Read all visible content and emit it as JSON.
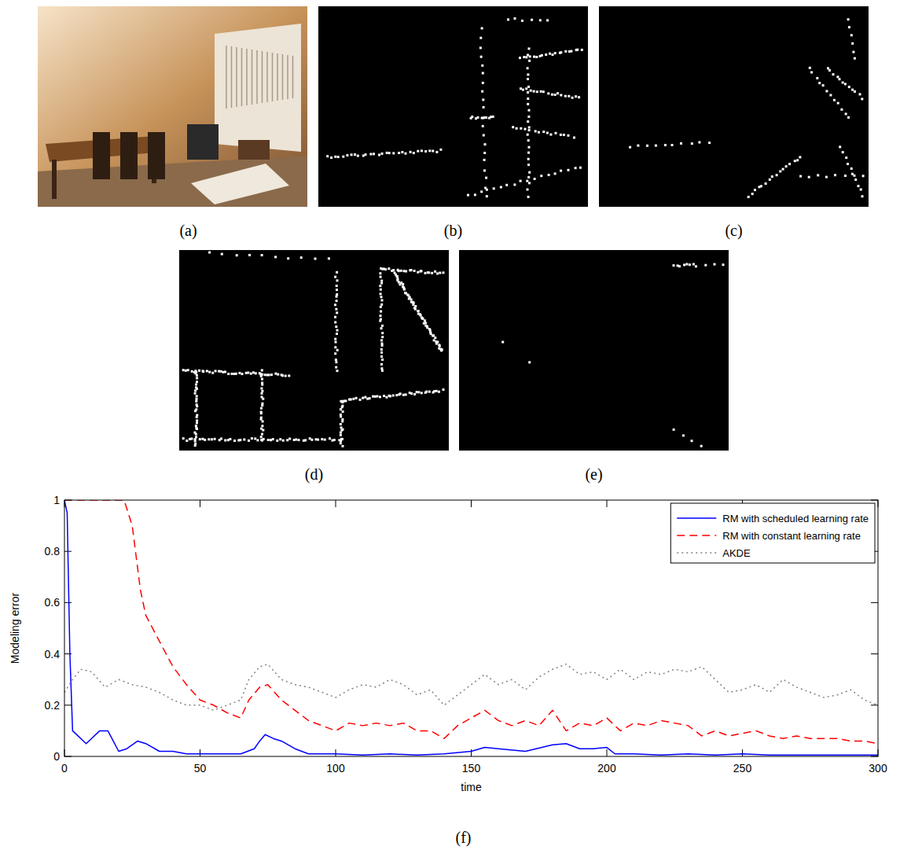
{
  "figure": {
    "panels": [
      "(a)",
      "(b)",
      "(c)",
      "(d)",
      "(e)",
      "(f)"
    ]
  },
  "chart_data": {
    "type": "line",
    "x_label": "time",
    "y_label": "Modeling error",
    "xlim": [
      0,
      300
    ],
    "ylim": [
      0,
      1
    ],
    "xticks": [
      0,
      50,
      100,
      150,
      200,
      250,
      300
    ],
    "yticks": [
      0,
      0.2,
      0.4,
      0.6,
      0.8,
      1
    ],
    "grid": false,
    "legend": "upper right",
    "series": [
      {
        "name": "RM with scheduled learning rate",
        "color": "#0000ff",
        "line_style": "solid",
        "x": [
          0,
          1,
          2,
          3,
          5,
          8,
          10,
          13,
          16,
          18,
          20,
          23,
          27,
          30,
          35,
          40,
          45,
          50,
          55,
          60,
          65,
          70,
          72,
          74,
          77,
          80,
          85,
          90,
          100,
          110,
          120,
          130,
          140,
          150,
          155,
          160,
          170,
          180,
          185,
          190,
          195,
          200,
          203,
          210,
          220,
          230,
          240,
          250,
          260,
          270,
          280,
          290,
          300
        ],
        "values": [
          1.0,
          0.95,
          0.4,
          0.1,
          0.08,
          0.05,
          0.07,
          0.1,
          0.1,
          0.06,
          0.02,
          0.03,
          0.06,
          0.05,
          0.02,
          0.02,
          0.01,
          0.01,
          0.01,
          0.01,
          0.01,
          0.03,
          0.06,
          0.085,
          0.07,
          0.06,
          0.03,
          0.01,
          0.01,
          0.005,
          0.01,
          0.005,
          0.01,
          0.02,
          0.035,
          0.03,
          0.02,
          0.045,
          0.05,
          0.03,
          0.03,
          0.035,
          0.01,
          0.01,
          0.005,
          0.01,
          0.005,
          0.01,
          0.005,
          0.005,
          0.005,
          0.005,
          0.005
        ]
      },
      {
        "name": "RM with constant learning rate",
        "color": "#ff0000",
        "line_style": "dashed",
        "x": [
          0,
          22,
          25,
          28,
          30,
          35,
          40,
          45,
          50,
          55,
          60,
          65,
          68,
          72,
          75,
          80,
          85,
          90,
          95,
          100,
          105,
          110,
          115,
          120,
          125,
          130,
          135,
          140,
          145,
          150,
          155,
          160,
          165,
          170,
          175,
          180,
          185,
          190,
          195,
          200,
          205,
          210,
          215,
          220,
          225,
          230,
          235,
          240,
          245,
          250,
          255,
          260,
          265,
          270,
          275,
          280,
          285,
          290,
          295,
          300
        ],
        "values": [
          1.0,
          1.0,
          0.9,
          0.65,
          0.55,
          0.45,
          0.35,
          0.28,
          0.22,
          0.2,
          0.17,
          0.15,
          0.22,
          0.27,
          0.28,
          0.22,
          0.18,
          0.14,
          0.12,
          0.1,
          0.13,
          0.12,
          0.13,
          0.12,
          0.13,
          0.1,
          0.1,
          0.07,
          0.12,
          0.15,
          0.18,
          0.14,
          0.12,
          0.14,
          0.12,
          0.18,
          0.1,
          0.13,
          0.12,
          0.15,
          0.1,
          0.13,
          0.12,
          0.14,
          0.13,
          0.12,
          0.08,
          0.1,
          0.08,
          0.09,
          0.1,
          0.08,
          0.07,
          0.08,
          0.07,
          0.07,
          0.07,
          0.06,
          0.06,
          0.05
        ]
      },
      {
        "name": "AKDE",
        "color": "#808080",
        "line_style": "dotted",
        "x": [
          0,
          3,
          6,
          10,
          15,
          20,
          25,
          30,
          35,
          40,
          45,
          50,
          55,
          60,
          65,
          68,
          72,
          75,
          80,
          85,
          90,
          95,
          100,
          105,
          110,
          115,
          120,
          125,
          130,
          135,
          140,
          145,
          150,
          155,
          160,
          165,
          170,
          175,
          180,
          185,
          190,
          195,
          200,
          205,
          210,
          215,
          220,
          225,
          230,
          235,
          240,
          245,
          250,
          255,
          260,
          265,
          270,
          275,
          280,
          285,
          290,
          295,
          300
        ],
        "values": [
          0.25,
          0.3,
          0.34,
          0.33,
          0.27,
          0.3,
          0.28,
          0.27,
          0.25,
          0.22,
          0.2,
          0.2,
          0.18,
          0.2,
          0.22,
          0.3,
          0.35,
          0.36,
          0.3,
          0.28,
          0.27,
          0.25,
          0.23,
          0.26,
          0.28,
          0.27,
          0.3,
          0.28,
          0.24,
          0.26,
          0.2,
          0.24,
          0.28,
          0.32,
          0.28,
          0.3,
          0.26,
          0.31,
          0.34,
          0.36,
          0.32,
          0.33,
          0.3,
          0.34,
          0.3,
          0.33,
          0.32,
          0.34,
          0.33,
          0.35,
          0.3,
          0.25,
          0.26,
          0.28,
          0.25,
          0.3,
          0.27,
          0.25,
          0.23,
          0.24,
          0.26,
          0.22,
          0.2
        ]
      }
    ]
  }
}
